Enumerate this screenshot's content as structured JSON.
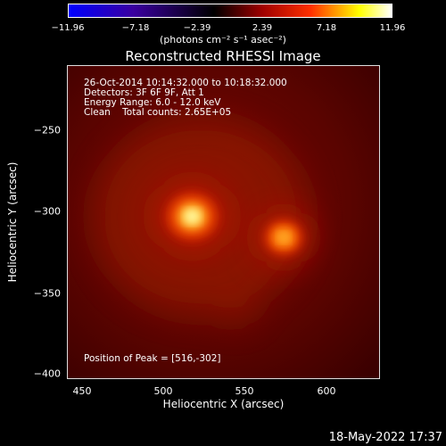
{
  "colorbar": {
    "ticks": [
      "−11.96",
      "−7.18",
      "−2.39",
      "2.39",
      "7.18",
      "11.96"
    ],
    "units": "(photons cm⁻² s⁻¹ asec⁻²)",
    "colors": [
      "#0000ff",
      "#000000",
      "#a00000",
      "#ff3000",
      "#ffff00",
      "#ffffff"
    ]
  },
  "title": "Reconstructed RHESSI Image",
  "info": {
    "line1": "26-Oct-2014 10:14:32.000 to 10:18:32.000",
    "line2": "Detectors: 3F 6F 9F, Att 1",
    "line3": "Energy Range: 6.0 - 12.0 keV",
    "line4": "Clean    Total counts: 2.65E+05",
    "peak": "Position of Peak = [516,-302]"
  },
  "axes": {
    "xlabel": "Heliocentric X (arcsec)",
    "ylabel": "Heliocentric Y (arcsec)",
    "xticks": [
      "450",
      "500",
      "550",
      "600"
    ],
    "yticks": [
      "−250",
      "−300",
      "−350",
      "−400"
    ],
    "xlim": [
      438,
      633
    ],
    "ylim": [
      -403,
      -208
    ]
  },
  "sources": [
    {
      "name": "primary",
      "x": 516,
      "y": -302,
      "intensity": 1.0
    },
    {
      "name": "secondary",
      "x": 573,
      "y": -315,
      "intensity": 0.72
    }
  ],
  "datestamp": "18-May-2022 17:37"
}
